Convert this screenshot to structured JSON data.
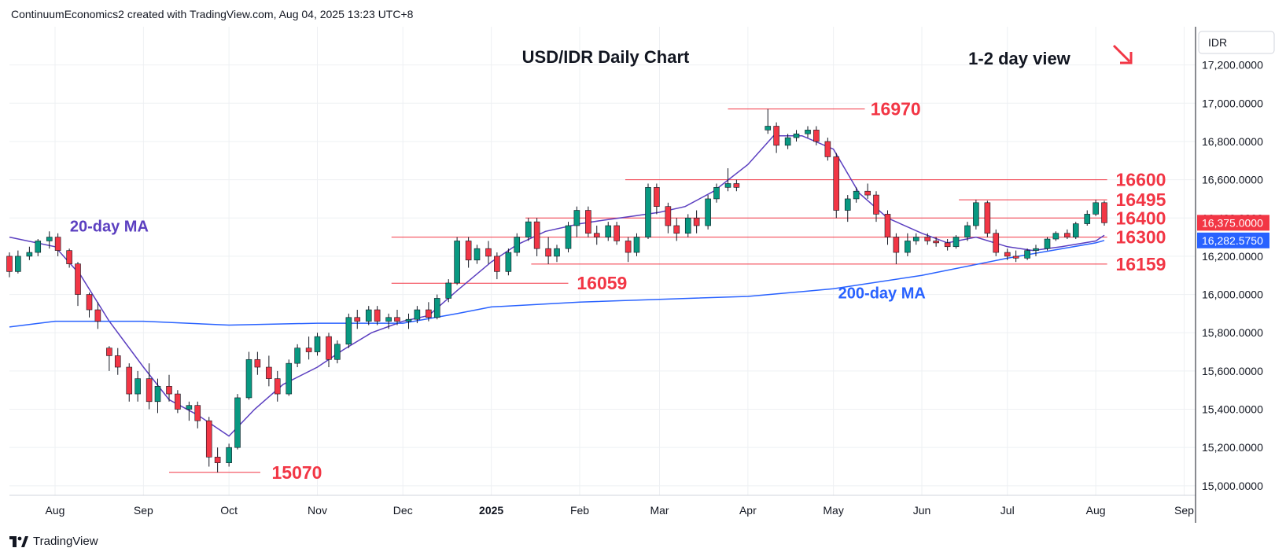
{
  "header": {
    "attribution": "ContinuumEconomics2 created with TradingView.com, Aug 04, 2025 13:23 UTC+8"
  },
  "footer": {
    "brand": "TradingView",
    "logo_icon": "tradingview-logo-icon"
  },
  "colors": {
    "up": "#089981",
    "down": "#f23645",
    "ma20": "#5b3fc0",
    "ma200": "#2962ff",
    "level": "#f23645",
    "grid": "#eef0f3",
    "axis_text": "#131722"
  },
  "chart_data": {
    "type": "candlestick",
    "title": "USD/IDR Daily Chart",
    "subtitle": "1-2 day view",
    "view_arrow": "down-right-arrow-icon",
    "currency": "IDR",
    "ylim": [
      14950,
      17400
    ],
    "y_ticks": [
      "17,200.0000",
      "17,000.0000",
      "16,800.0000",
      "16,600.0000",
      "16,400.0000",
      "16,200.0000",
      "16,000.0000",
      "15,800.0000",
      "15,600.0000",
      "15,400.0000",
      "15,200.0000",
      "15,000.0000"
    ],
    "y_tick_values": [
      17200,
      17000,
      16800,
      16600,
      16400,
      16200,
      16000,
      15800,
      15600,
      15400,
      15200,
      15000
    ],
    "x_ticks": [
      {
        "label": "Aug",
        "date": "2024-08-01"
      },
      {
        "label": "Sep",
        "date": "2024-09-01"
      },
      {
        "label": "Oct",
        "date": "2024-10-01"
      },
      {
        "label": "Nov",
        "date": "2024-11-01"
      },
      {
        "label": "Dec",
        "date": "2024-12-01"
      },
      {
        "label": "2025",
        "date": "2025-01-01",
        "bold": true
      },
      {
        "label": "Feb",
        "date": "2025-02-01"
      },
      {
        "label": "Mar",
        "date": "2025-03-01"
      },
      {
        "label": "Apr",
        "date": "2025-04-01"
      },
      {
        "label": "May",
        "date": "2025-05-01"
      },
      {
        "label": "Jun",
        "date": "2025-06-01"
      },
      {
        "label": "Jul",
        "date": "2025-07-01"
      },
      {
        "label": "Aug",
        "date": "2025-08-01"
      },
      {
        "label": "Sep",
        "date": "2025-09-01"
      }
    ],
    "xlim": [
      "2024-07-16",
      "2025-09-05"
    ],
    "price_tags": [
      {
        "label": "16,375.0000",
        "value": 16375,
        "color": "#f23645"
      },
      {
        "label": "16,282.5750",
        "value": 16282.575,
        "color": "#2962ff"
      }
    ],
    "levels": [
      {
        "label": "16970",
        "value": 16970,
        "from": "2025-03-25",
        "to": "2025-05-12",
        "label_at": "2025-05-14"
      },
      {
        "label": "16600",
        "value": 16600,
        "from": "2025-02-17",
        "to": "2025-08-05",
        "label_at": "2025-08-08"
      },
      {
        "label": "16495",
        "value": 16495,
        "from": "2025-06-14",
        "to": "2025-08-05",
        "label_at": "2025-08-08"
      },
      {
        "label": "16400",
        "value": 16400,
        "from": "2025-01-13",
        "to": "2025-08-05",
        "label_at": "2025-08-08"
      },
      {
        "label": "16300",
        "value": 16300,
        "from": "2024-11-27",
        "to": "2025-08-05",
        "label_at": "2025-08-08"
      },
      {
        "label": "16159",
        "value": 16159,
        "from": "2025-01-15",
        "to": "2025-08-05",
        "label_at": "2025-08-08"
      },
      {
        "label": "16059",
        "value": 16059,
        "from": "2024-11-27",
        "to": "2025-01-28",
        "label_at": "2025-01-31"
      },
      {
        "label": "15070",
        "value": 15070,
        "from": "2024-09-10",
        "to": "2024-10-12",
        "label_at": "2024-10-16"
      }
    ],
    "annotations": [
      {
        "label": "20-day MA",
        "date": "2024-08-20",
        "value": 16330,
        "color": "#5b3fc0"
      },
      {
        "label": "200-day MA",
        "date": "2025-05-18",
        "value": 15980,
        "color": "#2962ff"
      }
    ],
    "series": [
      {
        "name": "20-day MA",
        "type": "line",
        "x": [
          "2024-07-16",
          "2024-08-01",
          "2024-08-10",
          "2024-08-20",
          "2024-09-01",
          "2024-09-10",
          "2024-09-20",
          "2024-10-01",
          "2024-10-10",
          "2024-10-20",
          "2024-11-01",
          "2024-11-10",
          "2024-11-20",
          "2024-12-01",
          "2024-12-10",
          "2024-12-20",
          "2025-01-01",
          "2025-01-10",
          "2025-01-20",
          "2025-02-01",
          "2025-02-10",
          "2025-02-20",
          "2025-03-01",
          "2025-03-10",
          "2025-03-20",
          "2025-04-01",
          "2025-04-10",
          "2025-04-20",
          "2025-05-01",
          "2025-05-10",
          "2025-05-20",
          "2025-06-01",
          "2025-06-10",
          "2025-06-20",
          "2025-07-01",
          "2025-07-10",
          "2025-07-20",
          "2025-08-01",
          "2025-08-04"
        ],
        "y": [
          16300,
          16250,
          16100,
          15860,
          15620,
          15450,
          15370,
          15260,
          15400,
          15530,
          15620,
          15710,
          15800,
          15860,
          15890,
          16020,
          16170,
          16260,
          16330,
          16370,
          16390,
          16410,
          16430,
          16460,
          16540,
          16680,
          16830,
          16830,
          16760,
          16530,
          16400,
          16320,
          16270,
          16300,
          16250,
          16230,
          16250,
          16280,
          16310
        ]
      },
      {
        "name": "200-day MA",
        "type": "line",
        "x": [
          "2024-07-16",
          "2024-08-01",
          "2024-09-01",
          "2024-10-01",
          "2024-11-01",
          "2024-12-01",
          "2024-12-20",
          "2025-01-01",
          "2025-02-01",
          "2025-03-01",
          "2025-04-01",
          "2025-05-01",
          "2025-06-01",
          "2025-07-01",
          "2025-08-01",
          "2025-08-04"
        ],
        "y": [
          15830,
          15860,
          15860,
          15840,
          15850,
          15850,
          15900,
          15935,
          15960,
          15975,
          15990,
          16030,
          16100,
          16190,
          16270,
          16282.575
        ]
      }
    ],
    "ohlc": [
      [
        "2024-07-16",
        16200,
        16220,
        16090,
        16120
      ],
      [
        "2024-07-19",
        16120,
        16230,
        16110,
        16200
      ],
      [
        "2024-07-23",
        16200,
        16250,
        16180,
        16220
      ],
      [
        "2024-07-26",
        16220,
        16290,
        16200,
        16280
      ],
      [
        "2024-07-30",
        16280,
        16330,
        16240,
        16300
      ],
      [
        "2024-08-02",
        16300,
        16320,
        16200,
        16230
      ],
      [
        "2024-08-06",
        16230,
        16240,
        16140,
        16160
      ],
      [
        "2024-08-09",
        16160,
        16170,
        15940,
        16000
      ],
      [
        "2024-08-13",
        16000,
        16010,
        15880,
        15920
      ],
      [
        "2024-08-16",
        15920,
        15960,
        15820,
        15860
      ],
      [
        "2024-08-20",
        15720,
        15730,
        15600,
        15680
      ],
      [
        "2024-08-23",
        15680,
        15720,
        15580,
        15620
      ],
      [
        "2024-08-27",
        15620,
        15640,
        15440,
        15480
      ],
      [
        "2024-08-30",
        15480,
        15600,
        15440,
        15560
      ],
      [
        "2024-09-03",
        15560,
        15640,
        15400,
        15440
      ],
      [
        "2024-09-06",
        15440,
        15560,
        15380,
        15520
      ],
      [
        "2024-09-10",
        15520,
        15580,
        15440,
        15480
      ],
      [
        "2024-09-13",
        15480,
        15500,
        15380,
        15400
      ],
      [
        "2024-09-17",
        15400,
        15440,
        15340,
        15420
      ],
      [
        "2024-09-20",
        15420,
        15440,
        15300,
        15340
      ],
      [
        "2024-09-24",
        15340,
        15360,
        15100,
        15150
      ],
      [
        "2024-09-27",
        15150,
        15200,
        15070,
        15120
      ],
      [
        "2024-10-01",
        15120,
        15220,
        15100,
        15200
      ],
      [
        "2024-10-04",
        15200,
        15480,
        15190,
        15460
      ],
      [
        "2024-10-08",
        15460,
        15700,
        15450,
        15660
      ],
      [
        "2024-10-11",
        15660,
        15700,
        15580,
        15620
      ],
      [
        "2024-10-15",
        15620,
        15680,
        15520,
        15560
      ],
      [
        "2024-10-18",
        15560,
        15600,
        15440,
        15480
      ],
      [
        "2024-10-22",
        15480,
        15660,
        15470,
        15640
      ],
      [
        "2024-10-25",
        15640,
        15740,
        15620,
        15720
      ],
      [
        "2024-10-29",
        15720,
        15780,
        15660,
        15700
      ],
      [
        "2024-11-01",
        15700,
        15800,
        15680,
        15780
      ],
      [
        "2024-11-05",
        15780,
        15800,
        15620,
        15660
      ],
      [
        "2024-11-08",
        15660,
        15760,
        15640,
        15740
      ],
      [
        "2024-11-12",
        15740,
        15900,
        15720,
        15880
      ],
      [
        "2024-11-15",
        15880,
        15920,
        15820,
        15860
      ],
      [
        "2024-11-19",
        15860,
        15940,
        15840,
        15920
      ],
      [
        "2024-11-22",
        15920,
        15940,
        15840,
        15860
      ],
      [
        "2024-11-26",
        15860,
        15900,
        15820,
        15880
      ],
      [
        "2024-11-29",
        15880,
        15920,
        15840,
        15860
      ],
      [
        "2024-12-03",
        15860,
        15900,
        15820,
        15870
      ],
      [
        "2024-12-06",
        15870,
        15940,
        15850,
        15920
      ],
      [
        "2024-12-10",
        15920,
        15960,
        15860,
        15880
      ],
      [
        "2024-12-13",
        15880,
        16000,
        15870,
        15980
      ],
      [
        "2024-12-17",
        15980,
        16080,
        15960,
        16060
      ],
      [
        "2024-12-20",
        16060,
        16300,
        16050,
        16280
      ],
      [
        "2024-12-24",
        16280,
        16300,
        16140,
        16180
      ],
      [
        "2024-12-27",
        16180,
        16260,
        16160,
        16240
      ],
      [
        "2024-12-31",
        16240,
        16280,
        16160,
        16200
      ],
      [
        "2025-01-03",
        16200,
        16220,
        16080,
        16120
      ],
      [
        "2025-01-07",
        16120,
        16240,
        16100,
        16220
      ],
      [
        "2025-01-10",
        16220,
        16320,
        16200,
        16300
      ],
      [
        "2025-01-14",
        16300,
        16400,
        16280,
        16380
      ],
      [
        "2025-01-17",
        16380,
        16400,
        16200,
        16240
      ],
      [
        "2025-01-21",
        16240,
        16300,
        16159,
        16200
      ],
      [
        "2025-01-24",
        16200,
        16260,
        16170,
        16240
      ],
      [
        "2025-01-28",
        16240,
        16380,
        16220,
        16360
      ],
      [
        "2025-01-31",
        16360,
        16460,
        16300,
        16440
      ],
      [
        "2025-02-04",
        16440,
        16460,
        16300,
        16320
      ],
      [
        "2025-02-07",
        16320,
        16360,
        16260,
        16300
      ],
      [
        "2025-02-11",
        16300,
        16380,
        16280,
        16360
      ],
      [
        "2025-02-14",
        16360,
        16380,
        16260,
        16280
      ],
      [
        "2025-02-18",
        16280,
        16300,
        16170,
        16220
      ],
      [
        "2025-02-21",
        16220,
        16320,
        16200,
        16300
      ],
      [
        "2025-02-25",
        16300,
        16580,
        16290,
        16560
      ],
      [
        "2025-02-28",
        16560,
        16580,
        16420,
        16460
      ],
      [
        "2025-03-04",
        16460,
        16480,
        16320,
        16360
      ],
      [
        "2025-03-07",
        16360,
        16400,
        16280,
        16320
      ],
      [
        "2025-03-11",
        16320,
        16420,
        16300,
        16400
      ],
      [
        "2025-03-14",
        16400,
        16440,
        16320,
        16360
      ],
      [
        "2025-03-18",
        16360,
        16520,
        16340,
        16500
      ],
      [
        "2025-03-21",
        16500,
        16580,
        16480,
        16560
      ],
      [
        "2025-03-25",
        16560,
        16660,
        16540,
        16580
      ],
      [
        "2025-03-28",
        16580,
        16600,
        16540,
        16560
      ],
      [
        "2025-04-08",
        16860,
        16970,
        16840,
        16880
      ],
      [
        "2025-04-11",
        16880,
        16900,
        16740,
        16780
      ],
      [
        "2025-04-15",
        16780,
        16840,
        16760,
        16820
      ],
      [
        "2025-04-18",
        16820,
        16860,
        16800,
        16840
      ],
      [
        "2025-04-22",
        16840,
        16880,
        16820,
        16860
      ],
      [
        "2025-04-25",
        16860,
        16880,
        16780,
        16800
      ],
      [
        "2025-04-29",
        16800,
        16820,
        16700,
        16720
      ],
      [
        "2025-05-02",
        16720,
        16740,
        16400,
        16440
      ],
      [
        "2025-05-06",
        16440,
        16520,
        16380,
        16500
      ],
      [
        "2025-05-09",
        16500,
        16560,
        16480,
        16540
      ],
      [
        "2025-05-13",
        16540,
        16580,
        16500,
        16520
      ],
      [
        "2025-05-16",
        16520,
        16540,
        16380,
        16420
      ],
      [
        "2025-05-20",
        16420,
        16440,
        16260,
        16300
      ],
      [
        "2025-05-23",
        16300,
        16320,
        16159,
        16220
      ],
      [
        "2025-05-27",
        16220,
        16320,
        16200,
        16280
      ],
      [
        "2025-05-30",
        16280,
        16320,
        16260,
        16300
      ],
      [
        "2025-06-03",
        16300,
        16320,
        16260,
        16280
      ],
      [
        "2025-06-06",
        16280,
        16300,
        16250,
        16270
      ],
      [
        "2025-06-10",
        16270,
        16290,
        16230,
        16250
      ],
      [
        "2025-06-13",
        16250,
        16310,
        16240,
        16300
      ],
      [
        "2025-06-17",
        16300,
        16380,
        16280,
        16360
      ],
      [
        "2025-06-20",
        16360,
        16495,
        16340,
        16480
      ],
      [
        "2025-06-24",
        16480,
        16490,
        16300,
        16320
      ],
      [
        "2025-06-27",
        16320,
        16340,
        16200,
        16220
      ],
      [
        "2025-07-01",
        16220,
        16240,
        16180,
        16200
      ],
      [
        "2025-07-04",
        16200,
        16230,
        16170,
        16190
      ],
      [
        "2025-07-08",
        16190,
        16240,
        16180,
        16230
      ],
      [
        "2025-07-11",
        16230,
        16260,
        16200,
        16240
      ],
      [
        "2025-07-15",
        16240,
        16300,
        16230,
        16290
      ],
      [
        "2025-07-18",
        16290,
        16330,
        16280,
        16320
      ],
      [
        "2025-07-22",
        16320,
        16340,
        16290,
        16300
      ],
      [
        "2025-07-25",
        16300,
        16380,
        16290,
        16370
      ],
      [
        "2025-07-29",
        16370,
        16440,
        16360,
        16420
      ],
      [
        "2025-08-01",
        16420,
        16495,
        16410,
        16480
      ],
      [
        "2025-08-04",
        16480,
        16490,
        16360,
        16375
      ]
    ]
  }
}
